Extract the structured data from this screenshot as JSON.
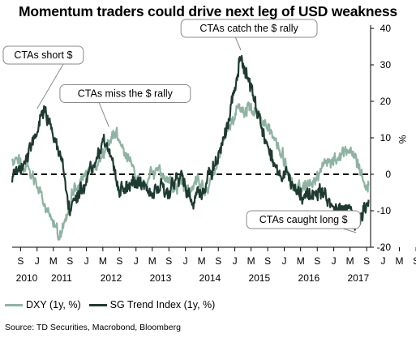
{
  "chart_data": {
    "type": "line",
    "title": "Momentum traders could drive next leg of USD weakness",
    "ylabel": "%",
    "ylim": [
      -20,
      40
    ],
    "yticks": [
      -20,
      -10,
      0,
      10,
      20,
      30,
      40
    ],
    "xlim": [
      "2010-07-01",
      "2017-09-30"
    ],
    "month_ticks": [
      "S",
      "J",
      "M",
      "S",
      "J",
      "M",
      "S",
      "J",
      "M",
      "S",
      "J",
      "M",
      "S",
      "J",
      "M",
      "S",
      "J",
      "M",
      "S",
      "J",
      "M",
      "S",
      "J",
      "M",
      "S",
      "J",
      "M",
      "S"
    ],
    "year_labels": [
      "2010",
      "2011",
      "2012",
      "2013",
      "2014",
      "2015",
      "2016",
      "2017"
    ],
    "zero_line": "dashed",
    "series": [
      {
        "name": "DXY (1y, %)",
        "color": "#8fb3a3",
        "x": [
          "2010-07-01",
          "2010-09-01",
          "2010-11-01",
          "2011-01-01",
          "2011-03-01",
          "2011-05-01",
          "2011-06-15",
          "2011-08-01",
          "2011-09-15",
          "2011-11-01",
          "2012-01-01",
          "2012-03-01",
          "2012-05-01",
          "2012-06-15",
          "2012-08-01",
          "2012-10-01",
          "2012-12-01",
          "2013-02-01",
          "2013-04-01",
          "2013-06-01",
          "2013-08-01",
          "2013-10-01",
          "2013-12-01",
          "2014-02-01",
          "2014-04-01",
          "2014-06-01",
          "2014-08-01",
          "2014-10-01",
          "2014-12-01",
          "2015-02-01",
          "2015-03-15",
          "2015-05-01",
          "2015-07-01",
          "2015-09-01",
          "2015-11-01",
          "2016-01-01",
          "2016-03-01",
          "2016-05-01",
          "2016-07-01",
          "2016-09-01",
          "2016-11-01",
          "2017-01-01",
          "2017-03-01",
          "2017-05-01",
          "2017-06-15",
          "2017-08-01",
          "2017-09-15"
        ],
        "y": [
          4,
          3,
          2,
          -3,
          -8,
          -13,
          -17,
          -12,
          -6,
          -3,
          0,
          2,
          5,
          10,
          11,
          7,
          3,
          -3,
          -1,
          1,
          0,
          -4,
          -2,
          -5,
          -2,
          -5,
          1,
          9,
          14,
          18,
          17,
          19,
          15,
          13,
          9,
          4,
          -2,
          -4,
          -3,
          -1,
          3,
          4,
          5,
          6,
          5,
          -1,
          -3
        ]
      },
      {
        "name": "SG Trend Index (1y, %)",
        "color": "#1f3b31",
        "x": [
          "2010-07-01",
          "2010-09-01",
          "2010-11-01",
          "2011-01-01",
          "2011-03-01",
          "2011-05-01",
          "2011-07-01",
          "2011-09-01",
          "2011-11-01",
          "2012-01-01",
          "2012-03-01",
          "2012-05-01",
          "2012-07-01",
          "2012-09-01",
          "2012-11-01",
          "2013-01-01",
          "2013-03-01",
          "2013-05-01",
          "2013-07-01",
          "2013-09-01",
          "2013-11-01",
          "2014-01-01",
          "2014-03-01",
          "2014-05-01",
          "2014-07-01",
          "2014-09-01",
          "2014-11-01",
          "2015-01-01",
          "2015-02-15",
          "2015-04-01",
          "2015-06-01",
          "2015-08-01",
          "2015-10-01",
          "2015-12-01",
          "2016-02-01",
          "2016-04-01",
          "2016-06-01",
          "2016-08-01",
          "2016-10-01",
          "2016-12-01",
          "2017-02-01",
          "2017-03-15",
          "2017-05-01",
          "2017-06-15",
          "2017-08-01",
          "2017-09-15"
        ],
        "y": [
          -1,
          2,
          6,
          12,
          18,
          10,
          4,
          -10,
          -6,
          -2,
          3,
          9,
          5,
          -4,
          -3,
          -2,
          -3,
          -6,
          -3,
          -6,
          -1,
          -3,
          -8,
          -5,
          0,
          5,
          12,
          24,
          33,
          26,
          19,
          10,
          5,
          -1,
          0,
          -5,
          -6,
          -5,
          -5,
          -7,
          -10,
          -9,
          -8,
          -15,
          -12,
          -7
        ]
      }
    ],
    "annotations": [
      {
        "text": "CTAs short $",
        "x": "2011-01-01",
        "y": 18
      },
      {
        "text": "CTAs miss the $ rally",
        "x": "2012-06-15",
        "y": 13
      },
      {
        "text": "CTAs catch the $ rally",
        "x": "2015-02-15",
        "y": 34
      },
      {
        "text": "CTAs caught long $",
        "x": "2017-06-15",
        "y": -16
      }
    ],
    "legend_position": "bottom-left"
  },
  "legend": {
    "dxy": "DXY (1y, %)",
    "sg": "SG Trend Index (1y, %)"
  },
  "source": "Source: TD Securities, Macrobond, Bloomberg",
  "colors": {
    "dxy": "#8fb3a3",
    "sg": "#1f3b31"
  }
}
